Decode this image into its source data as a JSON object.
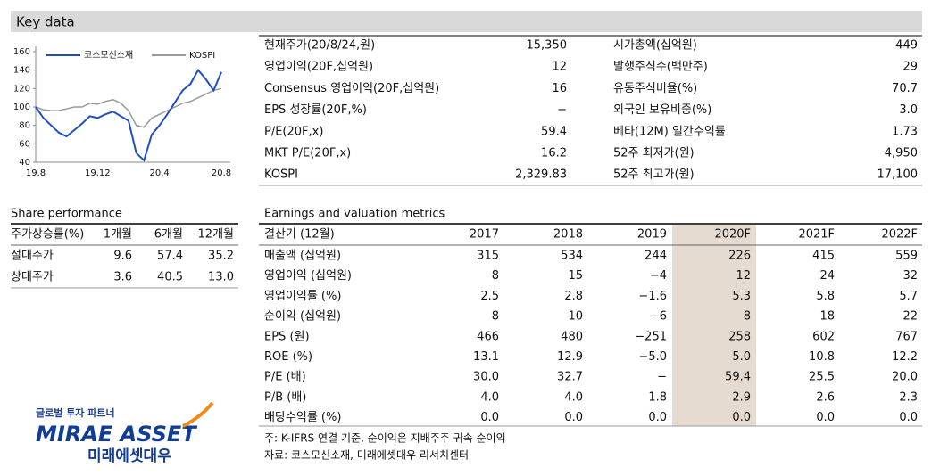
{
  "header": {
    "title": "Key data"
  },
  "chart_data": {
    "type": "line",
    "categories": [
      "19.8",
      null,
      null,
      null,
      null,
      null,
      null,
      null,
      "19.12",
      null,
      null,
      null,
      null,
      null,
      null,
      null,
      "20.4",
      null,
      null,
      null,
      null,
      null,
      null,
      null,
      "20.8"
    ],
    "series": [
      {
        "name": "코스모신소재",
        "color": "#1f4fbf",
        "values": [
          100,
          88,
          80,
          72,
          68,
          75,
          82,
          90,
          88,
          92,
          95,
          90,
          85,
          50,
          42,
          70,
          80,
          92,
          105,
          118,
          125,
          140,
          130,
          118,
          138
        ]
      },
      {
        "name": "KOSPI",
        "color": "#9a9a9a",
        "values": [
          100,
          97,
          96,
          96,
          98,
          100,
          100,
          104,
          103,
          106,
          108,
          104,
          96,
          80,
          78,
          88,
          92,
          96,
          100,
          104,
          106,
          110,
          114,
          118,
          120
        ]
      }
    ],
    "ylim": [
      40,
      160
    ],
    "yticks": [
      40,
      60,
      80,
      100,
      120,
      140,
      160
    ]
  },
  "key_data": {
    "rows": [
      [
        "현재주가(20/8/24,원)",
        "15,350",
        "시가총액(십억원)",
        "449"
      ],
      [
        "영업이익(20F,십억원)",
        "12",
        "발행주식수(백만주)",
        "29"
      ],
      [
        "Consensus 영업이익(20F,십억원)",
        "16",
        "유동주식비율(%)",
        "70.7"
      ],
      [
        "EPS 성장률(20F,%)",
        "−",
        "외국인 보유비중(%)",
        "3.0"
      ],
      [
        "P/E(20F,x)",
        "59.4",
        "베타(12M) 일간수익률",
        "1.73"
      ],
      [
        "MKT P/E(20F,x)",
        "16.2",
        "52주 최저가(원)",
        "4,950"
      ],
      [
        "KOSPI",
        "2,329.83",
        "52주 최고가(원)",
        "17,100"
      ]
    ]
  },
  "share_performance": {
    "title": "Share performance",
    "header": [
      "주가상승률(%)",
      "1개월",
      "6개월",
      "12개월"
    ],
    "rows": [
      [
        "절대주가",
        "9.6",
        "57.4",
        "35.2"
      ],
      [
        "상대주가",
        "3.6",
        "40.5",
        "13.0"
      ]
    ]
  },
  "earnings": {
    "title": "Earnings and valuation metrics",
    "header": [
      "결산기 (12월)",
      "2017",
      "2018",
      "2019",
      "2020F",
      "2021F",
      "2022F"
    ],
    "rows": [
      [
        "매출액 (십억원)",
        "315",
        "534",
        "244",
        "226",
        "415",
        "559"
      ],
      [
        "영업이익 (십억원)",
        "8",
        "15",
        "−4",
        "12",
        "24",
        "32"
      ],
      [
        "영업이익률 (%)",
        "2.5",
        "2.8",
        "−1.6",
        "5.3",
        "5.8",
        "5.7"
      ],
      [
        "순이익 (십억원)",
        "8",
        "10",
        "−6",
        "8",
        "18",
        "22"
      ],
      [
        "EPS (원)",
        "466",
        "480",
        "−251",
        "258",
        "602",
        "767"
      ],
      [
        "ROE (%)",
        "13.1",
        "12.9",
        "−5.0",
        "5.0",
        "10.8",
        "12.2"
      ],
      [
        "P/E (배)",
        "30.0",
        "32.7",
        "−",
        "59.4",
        "25.5",
        "20.0"
      ],
      [
        "P/B (배)",
        "4.0",
        "4.0",
        "1.8",
        "2.9",
        "2.6",
        "2.3"
      ],
      [
        "배당수익률 (%)",
        "0.0",
        "0.0",
        "0.0",
        "0.0",
        "0.0",
        "0.0"
      ]
    ]
  },
  "notes": [
    "주: K-IFRS 연결 기준, 순이익은 지배주주 귀속 순이익",
    "자료: 코스모신소재, 미래에셋대우 리서치센터"
  ],
  "logo": {
    "tagline": "글로벌 투자 파트너",
    "name": "MIRAE ASSET",
    "korean": "미래에셋대우"
  }
}
